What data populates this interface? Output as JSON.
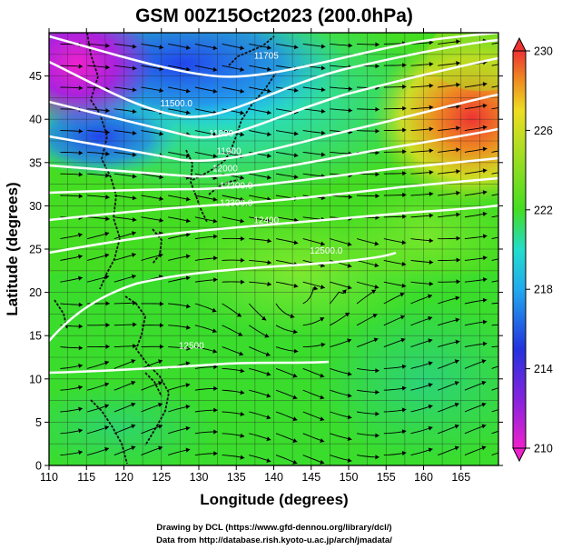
{
  "title": "GSM 00Z15Oct2023 (200.0hPa)",
  "footer": {
    "line1": "Drawing by DCL (https://www.gfd-dennou.org/library/dcl/)",
    "line2": "Data from http://database.rish.kyoto-u.ac.jp/arch/jmadata/"
  },
  "chart_data": {
    "type": "heatmap",
    "xlabel": "Longitude (degrees)",
    "ylabel": "Latitude  (degrees)",
    "xlim": [
      110,
      170
    ],
    "ylim": [
      0,
      50
    ],
    "xticks": [
      "110",
      "115",
      "120",
      "125",
      "130",
      "135",
      "140",
      "145",
      "150",
      "155",
      "160",
      "165"
    ],
    "yticks": [
      "0",
      "5",
      "10",
      "15",
      "20",
      "25",
      "30",
      "35",
      "40",
      "45"
    ],
    "grid": true,
    "colorbar": {
      "min": 210,
      "max": 230,
      "ticks": [
        "210",
        "214",
        "218",
        "222",
        "226",
        "230"
      ]
    },
    "colors": {
      "magenta": "#ee22cc",
      "blue": "#2255ee",
      "cyan": "#22ddee",
      "green": "#44dd22",
      "yellow": "#eedd22",
      "orange": "#ee8822",
      "red": "#ee3333"
    },
    "contours": [
      {
        "label": "11500.0",
        "lon": 127,
        "lat": 41.5
      },
      {
        "label": "11705",
        "lon": 139,
        "lat": 47
      },
      {
        "label": "11800",
        "lon": 133,
        "lat": 38
      },
      {
        "label": "11900",
        "lon": 134,
        "lat": 36
      },
      {
        "label": "12000",
        "lon": 133.5,
        "lat": 34
      },
      {
        "label": "12200.0",
        "lon": 135,
        "lat": 32
      },
      {
        "label": "12300.0",
        "lon": 135,
        "lat": 30
      },
      {
        "label": "12400",
        "lon": 139,
        "lat": 28
      },
      {
        "label": "12500.0",
        "lon": 147,
        "lat": 24.5
      },
      {
        "label": "12500",
        "lon": 129,
        "lat": 13.5
      }
    ]
  }
}
